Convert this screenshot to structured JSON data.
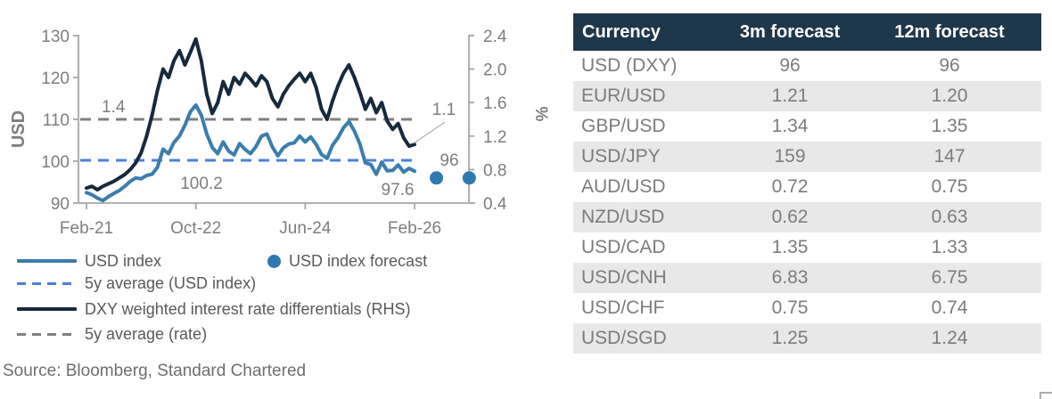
{
  "chart_data": {
    "type": "line",
    "title": "",
    "left_axis": {
      "title": "USD",
      "range": [
        90,
        130
      ],
      "tick_values": [
        90,
        100,
        110,
        120,
        130
      ],
      "tick_labels": [
        "90",
        "100",
        "110",
        "120",
        "130"
      ]
    },
    "right_axis": {
      "title": "%",
      "range": [
        0.4,
        2.4
      ],
      "tick_values": [
        0.4,
        0.8,
        1.2,
        1.6,
        2.0,
        2.4
      ],
      "tick_labels": [
        "0.4",
        "0.8",
        "1.2",
        "1.6",
        "2.0",
        "2.4"
      ]
    },
    "x_axis": {
      "tick_labels": [
        "Feb-21",
        "Oct-22",
        "Jun-24",
        "Feb-26"
      ],
      "tick_months": [
        0,
        20,
        40,
        60
      ],
      "grid": false
    },
    "series": [
      {
        "name": "USD index",
        "axis": "left",
        "style": "solid",
        "color": "#3b7dad",
        "start_month": 0,
        "values": [
          92.5,
          92.0,
          91.2,
          90.6,
          91.5,
          92.3,
          93.0,
          94.0,
          95.2,
          96.0,
          95.8,
          96.6,
          96.9,
          98.6,
          102.9,
          101.8,
          104.5,
          106.0,
          108.6,
          111.8,
          113.4,
          111.0,
          106.5,
          103.3,
          101.8,
          104.6,
          102.4,
          101.5,
          104.2,
          102.8,
          101.8,
          103.5,
          106.0,
          106.5,
          103.4,
          101.3,
          103.2,
          104.1,
          104.4,
          106.0,
          104.6,
          105.8,
          104.0,
          101.6,
          100.7,
          103.8,
          105.6,
          108.0,
          109.5,
          107.2,
          104.1,
          99.6,
          99.2,
          96.9,
          99.8,
          97.7,
          97.8,
          99.1,
          97.4,
          98.3,
          97.6
        ]
      },
      {
        "name": "DXY weighted interest rate differentials (RHS)",
        "axis": "right",
        "style": "solid",
        "color": "#17293c",
        "start_month": 0,
        "values": [
          0.58,
          0.6,
          0.56,
          0.6,
          0.63,
          0.66,
          0.7,
          0.74,
          0.8,
          0.88,
          1.0,
          1.2,
          1.45,
          1.75,
          2.0,
          1.9,
          2.1,
          2.22,
          2.05,
          2.2,
          2.36,
          2.1,
          1.7,
          1.47,
          1.6,
          1.85,
          1.7,
          1.9,
          1.82,
          1.95,
          1.88,
          1.8,
          1.92,
          1.85,
          1.65,
          1.55,
          1.7,
          1.8,
          1.88,
          1.95,
          1.85,
          1.95,
          1.78,
          1.52,
          1.4,
          1.62,
          1.8,
          1.95,
          2.05,
          1.9,
          1.72,
          1.52,
          1.65,
          1.48,
          1.6,
          1.38,
          1.28,
          1.35,
          1.18,
          1.08,
          1.1
        ]
      },
      {
        "name": "5y average (USD index)",
        "axis": "left",
        "style": "dashed",
        "color": "#4a80dd",
        "value": 100.2
      },
      {
        "name": "5y average (rate)",
        "axis": "right",
        "style": "dashed",
        "color": "#7f7f7f",
        "value": 1.4
      },
      {
        "name": "USD index forecast",
        "axis": "left",
        "style": "dots",
        "color": "#2e79b2",
        "months": [
          64,
          70
        ],
        "values": [
          96,
          96
        ]
      }
    ],
    "annotations": {
      "rate_avg": "1.4",
      "usd_avg": "100.2",
      "usd_last": "97.6",
      "forecast": "96",
      "rate_last": "1.1"
    },
    "legend_position": "bottom-left"
  },
  "legend": {
    "usd_index": "USD index",
    "usd_forecast": "USD index forecast",
    "avg_usd": "5y average (USD index)",
    "rate_diff": "DXY weighted interest rate differentials (RHS)",
    "avg_rate": "5y average (rate)"
  },
  "source": "Source: Bloomberg, Standard Chartered",
  "table": {
    "headers": [
      "Currency",
      "3m forecast",
      "12m forecast"
    ],
    "rows": [
      [
        "USD (DXY)",
        "96",
        "96"
      ],
      [
        "EUR/USD",
        "1.21",
        "1.20"
      ],
      [
        "GBP/USD",
        "1.34",
        "1.35"
      ],
      [
        "USD/JPY",
        "159",
        "147"
      ],
      [
        "AUD/USD",
        "0.72",
        "0.75"
      ],
      [
        "NZD/USD",
        "0.62",
        "0.63"
      ],
      [
        "USD/CAD",
        "1.35",
        "1.33"
      ],
      [
        "USD/CNH",
        "6.83",
        "6.75"
      ],
      [
        "USD/CHF",
        "0.75",
        "0.74"
      ],
      [
        "USD/SGD",
        "1.25",
        "1.24"
      ]
    ]
  },
  "colors": {
    "usd_index_line": "#3b7dad",
    "rate_diff_line": "#17293c",
    "avg_usd_dash": "#4a80dd",
    "avg_rate_dash": "#7f7f7f",
    "forecast_dot": "#2e79b2",
    "axis": "#a6a6a6",
    "tick_text": "#7d7d7d",
    "table_header_bg": "#1e374b",
    "table_stripe": "#e8e8e8"
  }
}
